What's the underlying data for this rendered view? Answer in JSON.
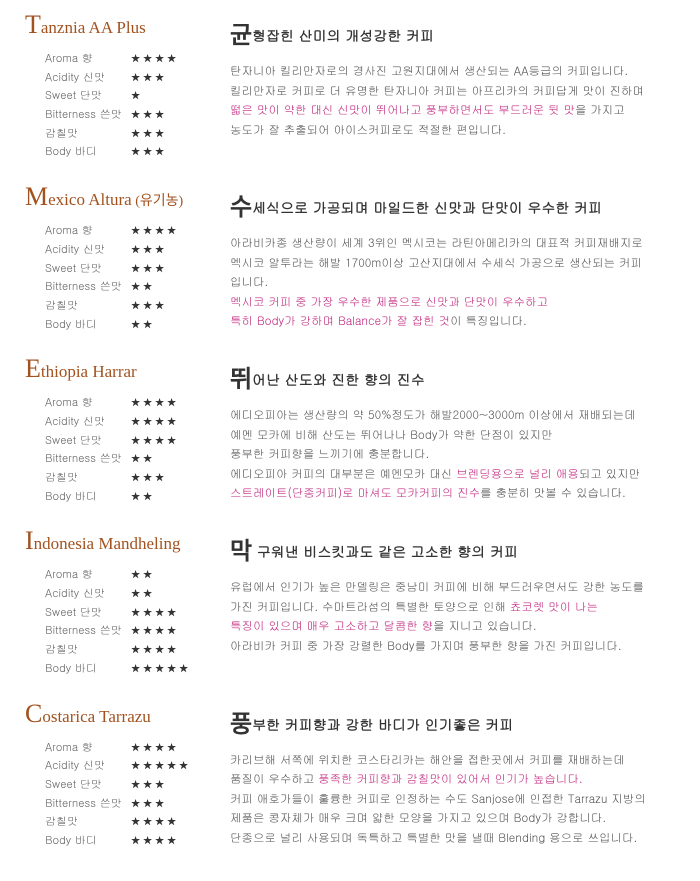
{
  "coffees": [
    {
      "title_big": "T",
      "title_rest": "anznia AA Plus",
      "title_sub": "",
      "headline_big": "균",
      "headline_rest": "형잡힌 산미의 개성강한 커피",
      "ratings": [
        {
          "label": "Aroma 향",
          "stars": "★★★★"
        },
        {
          "label": "Acidity 신맛",
          "stars": "★★★"
        },
        {
          "label": "Sweet 단맛",
          "stars": "★"
        },
        {
          "label": "Bitterness 쓴맛",
          "stars": "★★★"
        },
        {
          "label": "감칠맛",
          "stars": "★★★"
        },
        {
          "label": "Body 바디",
          "stars": "★★★"
        }
      ],
      "desc_parts": [
        {
          "t": "탄자니아 킬리만자로의 경사진 고원지대에서 생산되는  AA등급의 커피입니다.\n킬리만자로 커피로 더 유명한 탄자니아 커피는 아프리카의 커피답게 맛이 진하며\n",
          "hl": false
        },
        {
          "t": "떫은 맛이 약한 대신 신맛이 뛰어나고 풍부하면서도 부드러운 뒷 맛",
          "hl": true
        },
        {
          "t": "을 가지고\n농도가 잘 추출되어 아이스커피로도 적절한 편입니다.",
          "hl": false
        }
      ]
    },
    {
      "title_big": "M",
      "title_rest": "exico Altura",
      "title_sub": "(유기농)",
      "headline_big": "수",
      "headline_rest": "세식으로 가공되며 마일드한 신맛과 단맛이 우수한 커피",
      "ratings": [
        {
          "label": "Aroma 향",
          "stars": "★★★★"
        },
        {
          "label": "Acidity 신맛",
          "stars": "★★★"
        },
        {
          "label": "Sweet 단맛",
          "stars": "★★★"
        },
        {
          "label": "Bitterness 쓴맛",
          "stars": "★★"
        },
        {
          "label": "감칠맛",
          "stars": "★★★"
        },
        {
          "label": "Body 바디",
          "stars": "★★"
        }
      ],
      "desc_parts": [
        {
          "t": "아라비카종 생산량이 세계 3위인 멕시코는 라틴아메리카의 대표적 커피재배지로\n멕시코 알투라는 해발 1700m이상 고산지대에서 수세식 가공으로 생산되는 커피\n입니다.\n",
          "hl": false
        },
        {
          "t": "멕시코 커피 중 가장 우수한 제품으로 신맛과 단맛이 우수하고\n특히 Body가 강하며 Balance가 잘 잡힌 것",
          "hl": true
        },
        {
          "t": "이 특징입니다.",
          "hl": false
        }
      ]
    },
    {
      "title_big": "E",
      "title_rest": "thiopia Harrar",
      "title_sub": "",
      "headline_big": "뛰",
      "headline_rest": "어난 산도와 진한 향의 진수",
      "ratings": [
        {
          "label": "Aroma 향",
          "stars": "★★★★"
        },
        {
          "label": "Acidity 신맛",
          "stars": "★★★★"
        },
        {
          "label": "Sweet 단맛",
          "stars": "★★★★"
        },
        {
          "label": "Bitterness 쓴맛",
          "stars": "★★"
        },
        {
          "label": "감칠맛",
          "stars": "★★★"
        },
        {
          "label": "Body 바디",
          "stars": "★★"
        }
      ],
      "desc_parts": [
        {
          "t": "에디오피아는 생산량의 약 50%정도가 해발2000~3000m 이상에서 재배되는데\n예멘 모카에 비해 산도는 뛰어나나 Body가 약한 단점이 있지만\n풍부한 커피향을 느끼기에 충분합니다.\n에디오피아 커피의 대부분은 예멘모카 대신 ",
          "hl": false
        },
        {
          "t": "브렌딩용으로 널리 애용",
          "hl": true
        },
        {
          "t": "되고 있지만\n",
          "hl": false
        },
        {
          "t": "스트레이트(단종커피)로 마셔도 모카커피의 진수",
          "hl": true
        },
        {
          "t": "를 충분히 맛볼 수 있습니다.",
          "hl": false
        }
      ]
    },
    {
      "title_big": "I",
      "title_rest": "ndonesia Mandheling",
      "title_sub": "",
      "headline_big": "막",
      "headline_rest": " 구워낸 비스킷과도 같은 고소한 향의 커피",
      "ratings": [
        {
          "label": "Aroma 향",
          "stars": "★★"
        },
        {
          "label": "Acidity 신맛",
          "stars": "★★"
        },
        {
          "label": "Sweet 단맛",
          "stars": "★★★★"
        },
        {
          "label": "Bitterness 쓴맛",
          "stars": "★★★★"
        },
        {
          "label": "감칠맛",
          "stars": "★★★★"
        },
        {
          "label": "Body 바디",
          "stars": "★★★★★"
        }
      ],
      "desc_parts": [
        {
          "t": "유럽에서 인기가 높은 만델링은 중남미 커피에 비해 부드러우면서도 강한 농도를\n가진 커피입니다.  수마트라섬의 특별한 토양으로 인해 ",
          "hl": false
        },
        {
          "t": "쵸코렛 맛이 나는\n특징이 있으며 매우 고소하고 달콤한 향",
          "hl": true
        },
        {
          "t": "을 지니고 있습니다.\n아라비카 커피 중 가장 강렬한 Body를 가지며 풍부한 향을 가진 커피입니다.",
          "hl": false
        }
      ]
    },
    {
      "title_big": "C",
      "title_rest": "ostarica Tarrazu",
      "title_sub": "",
      "headline_big": "풍",
      "headline_rest": "부한 커피향과 강한 바디가 인기좋은 커피",
      "ratings": [
        {
          "label": "Aroma 향",
          "stars": "★★★★"
        },
        {
          "label": "Acidity 신맛",
          "stars": "★★★★★"
        },
        {
          "label": "Sweet 단맛",
          "stars": "★★★"
        },
        {
          "label": "Bitterness 쓴맛",
          "stars": "★★★"
        },
        {
          "label": "감칠맛",
          "stars": "★★★★"
        },
        {
          "label": "Body 바디",
          "stars": "★★★★"
        }
      ],
      "desc_parts": [
        {
          "t": "카리브해 서쪽에 위치한 코스타리카는 해안을 접한곳에서 커피를 재배하는데\n품질이 우수하고 ",
          "hl": false
        },
        {
          "t": "풍족한 커피향과 감칠맛이 있어서 인기가 높습니다.",
          "hl": true
        },
        {
          "t": "\n커피 애호가들이 훌륭한 커피로 인정하는 수도 Sanjose에 인접한 Tarrazu 지방의\n제품은 콩자체가 매우 크며 얇한 모양을 가지고 있으며 Body가 강합니다.\n단종으로 널리 사용되며 독특하고 특별한 맛을 낼때 Blending 용으로 쓰입니다.",
          "hl": false
        }
      ]
    }
  ]
}
